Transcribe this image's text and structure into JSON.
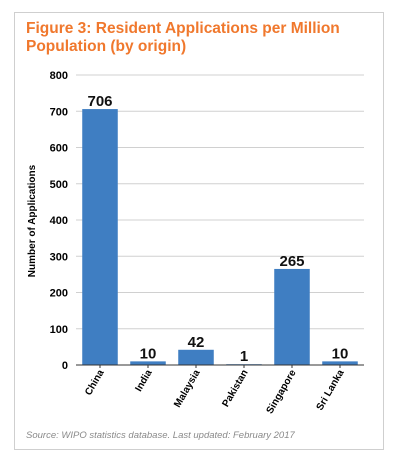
{
  "chart_data": {
    "type": "bar",
    "title": "Figure 3: Resident Applications per Million Population (by origin)",
    "ylabel": "Number of Applications",
    "xlabel": "",
    "categories": [
      "China",
      "India",
      "Malaysia",
      "Pakistan",
      "Singapore",
      "Sri Lanka"
    ],
    "values": [
      706,
      10,
      42,
      1,
      265,
      10
    ],
    "data_labels": [
      "706",
      "10",
      "42",
      "1",
      "265",
      "10"
    ],
    "ylim": [
      0,
      800
    ],
    "yticks": [
      0,
      100,
      200,
      300,
      400,
      500,
      600,
      700,
      800
    ],
    "grid": true,
    "bar_color": "#3f7ec2",
    "title_color": "#f0782d",
    "source": "Source: WIPO statistics database. Last updated: February 2017"
  }
}
